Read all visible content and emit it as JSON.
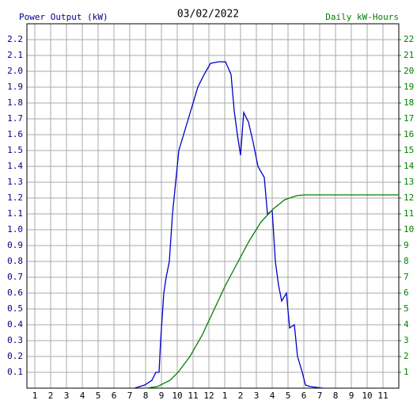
{
  "chart_data": {
    "type": "line",
    "title": "03/02/2022",
    "ylabel": "Power Output (kW)",
    "y2label": "Daily kW-Hours",
    "xlim": [
      0.5,
      24
    ],
    "xticks": [
      1,
      2,
      3,
      4,
      5,
      6,
      7,
      8,
      9,
      10,
      11,
      12,
      {
        "value": 13,
        "label": "1"
      },
      {
        "value": 14,
        "label": "2"
      },
      {
        "value": 15,
        "label": "3"
      },
      {
        "value": 16,
        "label": "4"
      },
      {
        "value": 17,
        "label": "5"
      },
      {
        "value": 18,
        "label": "6"
      },
      {
        "value": 19,
        "label": "7"
      },
      {
        "value": 20,
        "label": "8"
      },
      {
        "value": 21,
        "label": "9"
      },
      {
        "value": 22,
        "label": "10"
      },
      {
        "value": 23,
        "label": "11"
      }
    ],
    "ylim": [
      0,
      2.3
    ],
    "yticks": [
      0.1,
      0.2,
      0.3,
      0.4,
      0.5,
      0.6,
      0.7,
      0.8,
      0.9,
      {
        "value": 1,
        "label": "1.0"
      },
      1.1,
      1.2,
      1.3,
      1.4,
      1.5,
      1.6,
      1.7,
      1.8,
      1.9,
      {
        "value": 2,
        "label": "2.0"
      },
      2.1,
      2.2
    ],
    "y2lim": [
      0,
      23
    ],
    "y2ticks": [
      1,
      2,
      3,
      4,
      5,
      6,
      7,
      8,
      9,
      10,
      11,
      12,
      13,
      14,
      15,
      16,
      17,
      18,
      19,
      20,
      21,
      22
    ],
    "grid": true,
    "series": [
      {
        "name": "Power Output (kW)",
        "color": "#0000cc",
        "x": [
          7.3,
          7.95,
          8.4,
          8.65,
          8.85,
          8.95,
          9.15,
          9.3,
          9.5,
          9.7,
          9.9,
          10.1,
          10.4,
          10.7,
          11.0,
          11.3,
          11.7,
          12.1,
          12.6,
          13.05,
          13.4,
          13.6,
          13.8,
          14.0,
          14.2,
          14.5,
          14.8,
          15.1,
          15.5,
          15.7,
          16.0,
          16.2,
          16.4,
          16.6,
          16.9,
          17.1,
          17.4,
          17.6,
          17.9,
          18.1,
          18.4,
          19.2
        ],
        "values": [
          0,
          0.02,
          0.05,
          0.1,
          0.1,
          0.3,
          0.6,
          0.7,
          0.8,
          1.1,
          1.3,
          1.5,
          1.6,
          1.7,
          1.8,
          1.9,
          1.98,
          2.05,
          2.06,
          2.06,
          1.98,
          1.75,
          1.6,
          1.47,
          1.74,
          1.68,
          1.55,
          1.4,
          1.33,
          1.1,
          1.12,
          0.8,
          0.65,
          0.55,
          0.6,
          0.38,
          0.4,
          0.2,
          0.1,
          0.02,
          0.01,
          0
        ]
      },
      {
        "name": "Daily kW-Hours",
        "color": "#008000",
        "axis": "y2",
        "x": [
          8.0,
          8.75,
          9.55,
          10.05,
          10.8,
          11.55,
          12.3,
          13.05,
          13.8,
          14.55,
          15.3,
          16.05,
          16.8,
          17.55,
          18.05,
          24
        ],
        "values": [
          0,
          0.1,
          0.5,
          1.0,
          2.0,
          3.3,
          4.9,
          6.5,
          7.9,
          9.3,
          10.5,
          11.3,
          11.9,
          12.15,
          12.2,
          12.2
        ]
      }
    ]
  }
}
